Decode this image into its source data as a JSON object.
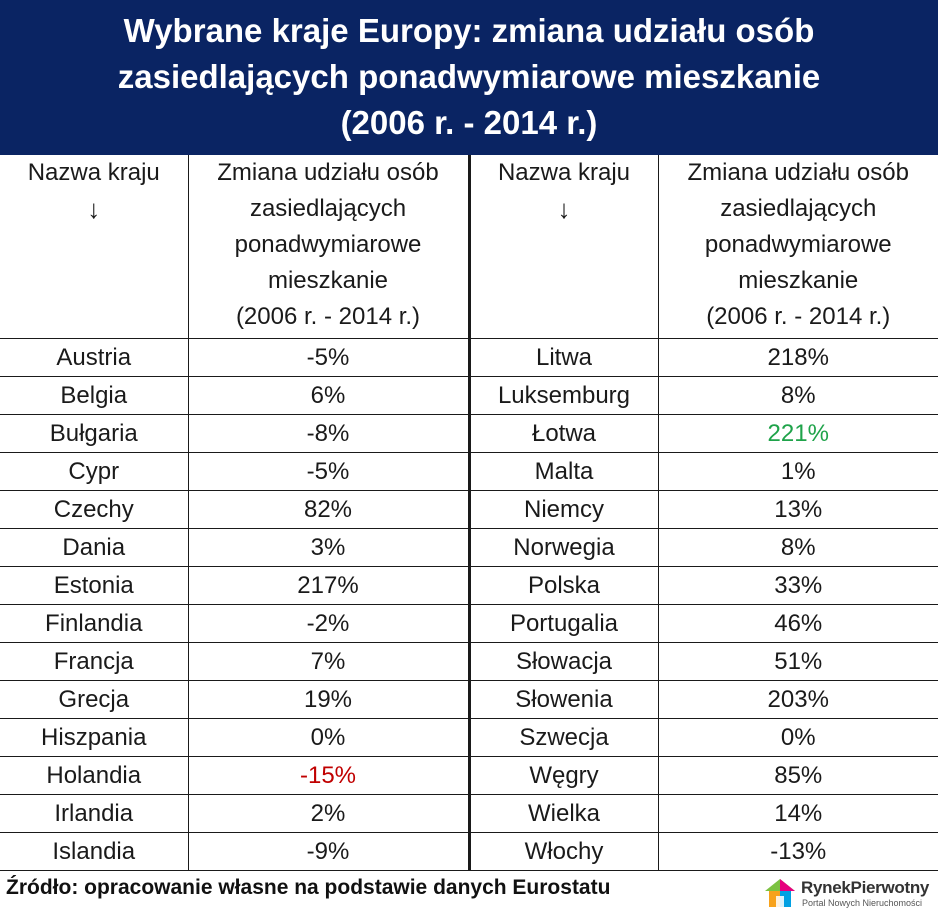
{
  "title": {
    "line1": "Wybrane kraje Europy: zmiana udziału osób",
    "line2": "zasiedlających ponadwymiarowe mieszkanie",
    "line3": "(2006 r. - 2014 r.)"
  },
  "headers": {
    "country": "Nazwa kraju",
    "arrow": "↓",
    "change_l1": "Zmiana udziału osób",
    "change_l2": "zasiedlających",
    "change_l3": "ponadwymiarowe",
    "change_l4": "mieszkanie",
    "change_l5": "(2006 r. - 2014 r.)"
  },
  "rows": [
    {
      "c1": "Austria",
      "v1": "-5%",
      "c2": "Litwa",
      "v2": "218%"
    },
    {
      "c1": "Belgia",
      "v1": "6%",
      "c2": "Luksemburg",
      "v2": "8%"
    },
    {
      "c1": "Bułgaria",
      "v1": "-8%",
      "c2": "Łotwa",
      "v2": "221%"
    },
    {
      "c1": "Cypr",
      "v1": "-5%",
      "c2": "Malta",
      "v2": "1%"
    },
    {
      "c1": "Czechy",
      "v1": "82%",
      "c2": "Niemcy",
      "v2": "13%"
    },
    {
      "c1": "Dania",
      "v1": "3%",
      "c2": "Norwegia",
      "v2": "8%"
    },
    {
      "c1": "Estonia",
      "v1": "217%",
      "c2": "Polska",
      "v2": "33%"
    },
    {
      "c1": "Finlandia",
      "v1": "-2%",
      "c2": "Portugalia",
      "v2": "46%"
    },
    {
      "c1": "Francja",
      "v1": "7%",
      "c2": "Słowacja",
      "v2": "51%"
    },
    {
      "c1": "Grecja",
      "v1": "19%",
      "c2": "Słowenia",
      "v2": "203%"
    },
    {
      "c1": "Hiszpania",
      "v1": "0%",
      "c2": "Szwecja",
      "v2": "0%"
    },
    {
      "c1": "Holandia",
      "v1": "-15%",
      "c2": "Węgry",
      "v2": "85%"
    },
    {
      "c1": "Irlandia",
      "v1": "2%",
      "c2": "Wielka",
      "v2": "14%"
    },
    {
      "c1": "Islandia",
      "v1": "-9%",
      "c2": "Włochy",
      "v2": "-13%"
    }
  ],
  "highlights": {
    "lowest_color": "#c00000",
    "highest_color": "#1fa34a"
  },
  "source": "Źródło: opracowanie własne na podstawie danych Eurostatu",
  "logo": {
    "name": "RynekPierwotny",
    "tagline": "Portal Nowych Nieruchomości"
  }
}
